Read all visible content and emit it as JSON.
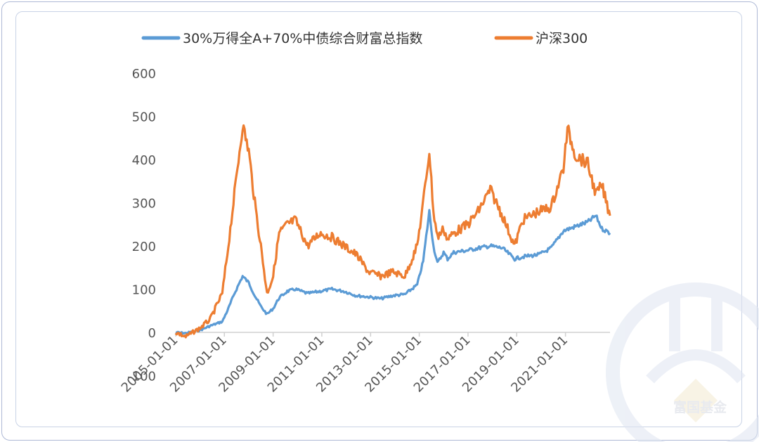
{
  "chart_data": {
    "type": "line",
    "title": "",
    "xlabel": "",
    "ylabel": "",
    "ylim": [
      -100,
      600
    ],
    "yticks": [
      -100,
      0,
      100,
      200,
      300,
      400,
      500,
      600
    ],
    "ytick_labels": [
      "-100",
      "0",
      "100",
      "200",
      "300",
      "400",
      "500",
      "600"
    ],
    "x_tick_labels": [
      "2005-01-01",
      "2007-01-01",
      "2009-01-01",
      "2011-01-01",
      "2013-01-01",
      "2015-01-01",
      "2017-01-01",
      "2019-01-01",
      "2021-01-01"
    ],
    "x_range": [
      "2005-01-01",
      "2022-10-31"
    ],
    "grid": false,
    "legend_position": "top",
    "series": [
      {
        "name": "30%万得全A+70%中债综合财富总指数",
        "color": "#5b9bd5",
        "x": [
          "2005-01-01",
          "2005-06-01",
          "2006-01-01",
          "2006-06-01",
          "2006-12-01",
          "2007-03-01",
          "2007-06-01",
          "2007-10-01",
          "2008-01-01",
          "2008-04-01",
          "2008-07-01",
          "2008-10-01",
          "2009-01-01",
          "2009-04-01",
          "2009-08-01",
          "2009-12-01",
          "2010-06-01",
          "2010-12-01",
          "2011-06-01",
          "2011-12-01",
          "2012-06-01",
          "2012-12-01",
          "2013-06-01",
          "2013-12-01",
          "2014-06-01",
          "2014-12-01",
          "2015-03-01",
          "2015-06-01",
          "2015-08-01",
          "2015-10-01",
          "2016-01-01",
          "2016-03-01",
          "2016-06-01",
          "2017-01-01",
          "2017-06-01",
          "2017-12-01",
          "2018-06-01",
          "2018-12-01",
          "2019-04-01",
          "2019-12-01",
          "2020-06-01",
          "2020-12-01",
          "2021-06-01",
          "2021-12-01",
          "2022-04-01",
          "2022-07-01",
          "2022-10-31"
        ],
        "values": [
          0,
          -2,
          5,
          15,
          25,
          55,
          90,
          130,
          115,
          85,
          60,
          42,
          55,
          80,
          95,
          100,
          90,
          95,
          100,
          95,
          85,
          82,
          78,
          85,
          88,
          110,
          165,
          280,
          200,
          160,
          185,
          170,
          185,
          190,
          195,
          200,
          195,
          170,
          175,
          180,
          195,
          235,
          245,
          255,
          270,
          240,
          230
        ]
      },
      {
        "name": "沪深300",
        "color": "#ed7d31",
        "x": [
          "2005-01-01",
          "2005-06-01",
          "2006-01-01",
          "2006-06-01",
          "2006-12-01",
          "2007-03-01",
          "2007-06-01",
          "2007-10-01",
          "2008-01-01",
          "2008-04-01",
          "2008-07-01",
          "2008-10-01",
          "2009-01-01",
          "2009-04-01",
          "2009-08-01",
          "2009-12-01",
          "2010-06-01",
          "2010-12-01",
          "2011-06-01",
          "2011-12-01",
          "2012-06-01",
          "2012-12-01",
          "2013-06-01",
          "2013-12-01",
          "2014-06-01",
          "2014-12-01",
          "2015-03-01",
          "2015-06-01",
          "2015-08-01",
          "2015-10-01",
          "2016-01-01",
          "2016-03-01",
          "2016-06-01",
          "2017-01-01",
          "2017-06-01",
          "2017-12-01",
          "2018-06-01",
          "2018-12-01",
          "2019-04-01",
          "2019-12-01",
          "2020-06-01",
          "2020-12-01",
          "2021-02-01",
          "2021-06-01",
          "2021-12-01",
          "2022-04-01",
          "2022-07-01",
          "2022-10-31"
        ],
        "values": [
          0,
          -10,
          10,
          30,
          90,
          200,
          320,
          480,
          420,
          300,
          200,
          90,
          130,
          230,
          250,
          260,
          200,
          230,
          220,
          200,
          180,
          140,
          130,
          140,
          130,
          200,
          300,
          420,
          280,
          220,
          240,
          215,
          230,
          250,
          280,
          330,
          270,
          200,
          260,
          280,
          290,
          380,
          470,
          410,
          390,
          320,
          340,
          270
        ]
      }
    ]
  },
  "legend": {
    "series0": "30%万得全A+70%中债综合财富总指数",
    "series1": "沪深300"
  },
  "watermark": {
    "text": "富国基金",
    "color": "#d7dae3"
  }
}
